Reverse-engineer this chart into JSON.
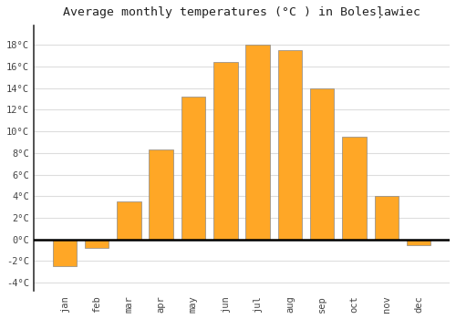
{
  "months": [
    "Jan",
    "Feb",
    "Mar",
    "Apr",
    "May",
    "Jun",
    "Jul",
    "Aug",
    "Sep",
    "Oct",
    "Nov",
    "Dec"
  ],
  "values": [
    -2.5,
    -0.8,
    3.5,
    8.3,
    13.2,
    16.4,
    18.0,
    17.5,
    14.0,
    9.5,
    4.0,
    -0.5
  ],
  "bar_color": "#FFA726",
  "bar_edge_color": "#888888",
  "title": "Average monthly temperatures (°C ) in Bolesļawiec",
  "ylim": [
    -4.8,
    19.8
  ],
  "yticks": [
    -4,
    -2,
    0,
    2,
    4,
    6,
    8,
    10,
    12,
    14,
    16,
    18
  ],
  "background_color": "#ffffff",
  "grid_color": "#dddddd",
  "title_fontsize": 9.5,
  "tick_fontsize": 7.5,
  "bar_width": 0.75
}
